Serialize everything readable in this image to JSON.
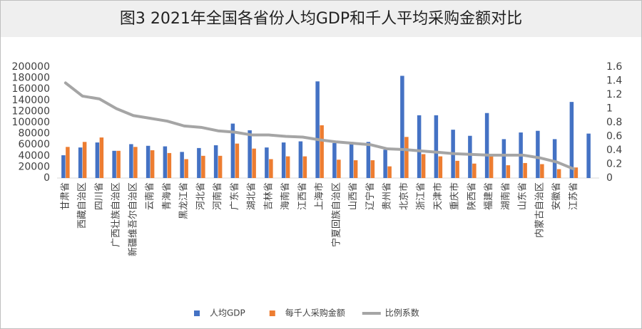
{
  "chart_data": {
    "type": "bar_line",
    "title": "图3 2021年全国各省份人均GDP和千人平均采购金额对比",
    "categories": [
      "甘肃省",
      "西藏自治区",
      "四川省",
      "广西壮族自治区",
      "新疆维吾尔自治区",
      "云南省",
      "青海省",
      "黑龙江省",
      "河北省",
      "河南省",
      "广东省",
      "湖北省",
      "吉林省",
      "海南省",
      "江西省",
      "上海市",
      "宁夏回族自治区",
      "山西省",
      "辽宁省",
      "贵州省",
      "北京市",
      "浙江省",
      "天津市",
      "重庆市",
      "陕西省",
      "福建省",
      "湖南省",
      "山东省",
      "内蒙古自治区",
      "安徽省",
      "江苏省",
      null
    ],
    "series": [
      {
        "name": "人均GDP",
        "type": "bar",
        "color": "#4472c4",
        "values": [
          41000,
          55000,
          64000,
          49000,
          61000,
          58000,
          57000,
          47000,
          54000,
          59000,
          98000,
          86000,
          55000,
          64000,
          66000,
          174000,
          63000,
          65000,
          65000,
          51000,
          184000,
          113000,
          113000,
          87000,
          76000,
          117000,
          70000,
          82000,
          85000,
          70000,
          137000,
          80000
        ]
      },
      {
        "name": "每千人采购金额",
        "type": "bar",
        "color": "#ed7d31",
        "values": [
          56000,
          65000,
          73000,
          49000,
          56000,
          50000,
          45000,
          34000,
          40000,
          40000,
          62000,
          53000,
          34000,
          39000,
          39000,
          95000,
          33000,
          32000,
          32000,
          21000,
          74000,
          43000,
          39000,
          31000,
          26000,
          39000,
          23000,
          27000,
          25000,
          16000,
          19000,
          null
        ]
      },
      {
        "name": "比例系数",
        "type": "line",
        "axis": "y2",
        "color": "#a5a5a5",
        "values": [
          1.37,
          1.18,
          1.14,
          1.0,
          0.9,
          0.86,
          0.82,
          0.75,
          0.73,
          0.68,
          0.66,
          0.62,
          0.62,
          0.6,
          0.59,
          0.55,
          0.52,
          0.5,
          0.48,
          0.42,
          0.41,
          0.39,
          0.37,
          0.35,
          0.34,
          0.33,
          0.33,
          0.33,
          0.29,
          0.23,
          0.13,
          null
        ]
      }
    ],
    "ylim": [
      0,
      200000
    ],
    "yticks": [
      0,
      20000,
      40000,
      60000,
      80000,
      100000,
      120000,
      140000,
      160000,
      180000,
      200000
    ],
    "y2lim": [
      0,
      1.6
    ],
    "y2ticks": [
      0,
      0.2,
      0.4,
      0.6,
      0.8,
      1,
      1.2,
      1.4,
      1.6
    ],
    "legend": "bottom"
  }
}
